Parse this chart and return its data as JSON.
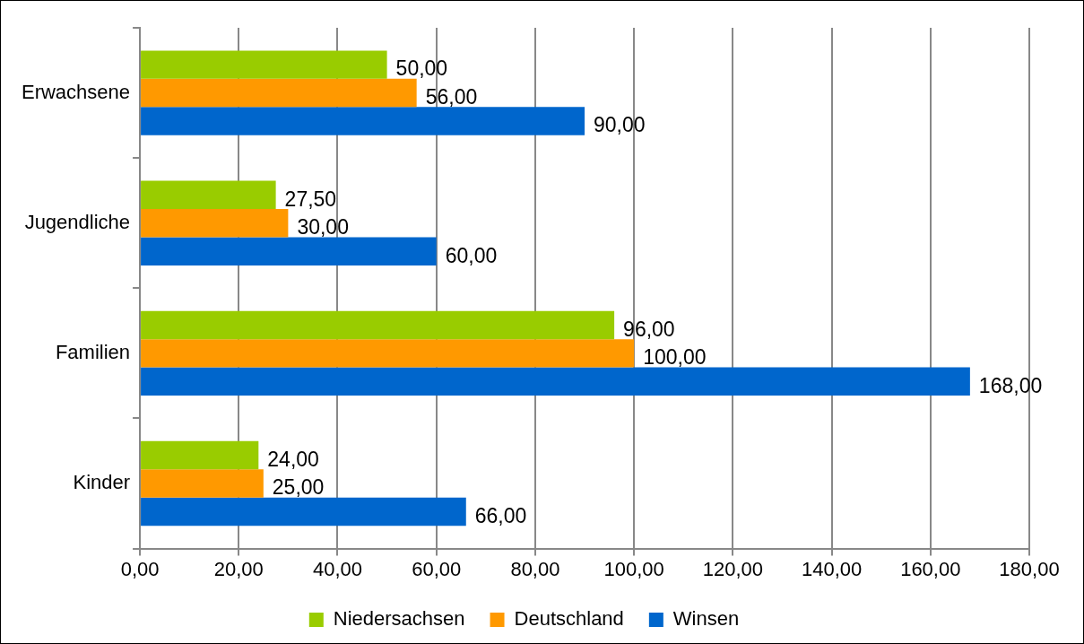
{
  "chart_data": {
    "type": "bar",
    "orientation": "horizontal",
    "categories": [
      "Erwachsene",
      "Jugendliche",
      "Familien",
      "Kinder"
    ],
    "series": [
      {
        "name": "Niedersachsen",
        "color": "#99cc00",
        "values": [
          50,
          27.5,
          96,
          24
        ],
        "value_labels": [
          "50,00",
          "27,50",
          "96,00",
          "24,00"
        ]
      },
      {
        "name": "Deutschland",
        "color": "#ff9900",
        "values": [
          56,
          30,
          100,
          25
        ],
        "value_labels": [
          "56,00",
          "30,00",
          "100,00",
          "25,00"
        ]
      },
      {
        "name": "Winsen",
        "color": "#0066cc",
        "values": [
          90,
          60,
          168,
          66
        ],
        "value_labels": [
          "90,00",
          "60,00",
          "168,00",
          "66,00"
        ]
      }
    ],
    "xlim": [
      0,
      180
    ],
    "xticks": [
      {
        "value": 0,
        "label": "0,00"
      },
      {
        "value": 20,
        "label": "20,00"
      },
      {
        "value": 40,
        "label": "40,00"
      },
      {
        "value": 60,
        "label": "60,00"
      },
      {
        "value": 80,
        "label": "80,00"
      },
      {
        "value": 100,
        "label": "100,00"
      },
      {
        "value": 120,
        "label": "120,00"
      },
      {
        "value": 140,
        "label": "140,00"
      },
      {
        "value": 160,
        "label": "160,00"
      },
      {
        "value": 180,
        "label": "180,00"
      }
    ],
    "grid": "x",
    "legend": "bottom"
  }
}
